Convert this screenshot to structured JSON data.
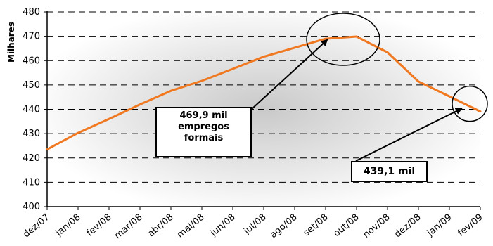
{
  "chart_data": {
    "type": "line",
    "ylabel": "Milhares",
    "xlabel": "",
    "title": "",
    "ylim": [
      400,
      480
    ],
    "yticks": [
      400,
      410,
      420,
      430,
      440,
      450,
      460,
      470,
      480
    ],
    "grid": "horizontal dashed",
    "categories": [
      "dez/07",
      "jan/08",
      "fev/08",
      "mar/08",
      "abr/08",
      "mai/08",
      "jun/08",
      "jul/08",
      "ago/08",
      "set/08",
      "out/08",
      "nov/08",
      "dez/08",
      "jan/09",
      "fev/09"
    ],
    "series": [
      {
        "values": [
          423.5,
          430.3,
          436.0,
          442.0,
          447.6,
          451.7,
          456.6,
          461.6,
          465.3,
          469.0,
          469.9,
          463.4,
          451.4,
          445.3,
          439.1
        ]
      }
    ],
    "annotations": [
      {
        "id": "peak",
        "lines": [
          "469,9 mil",
          "empregos",
          "formais"
        ],
        "category": "out/08",
        "value": 469.9
      },
      {
        "id": "last",
        "lines": [
          "439,1 mil"
        ],
        "category": "fev/09",
        "value": 439.1
      }
    ]
  },
  "colors": {
    "line": "#f07820",
    "axis": "#000000",
    "grid": "#000000",
    "text": "#000000"
  }
}
